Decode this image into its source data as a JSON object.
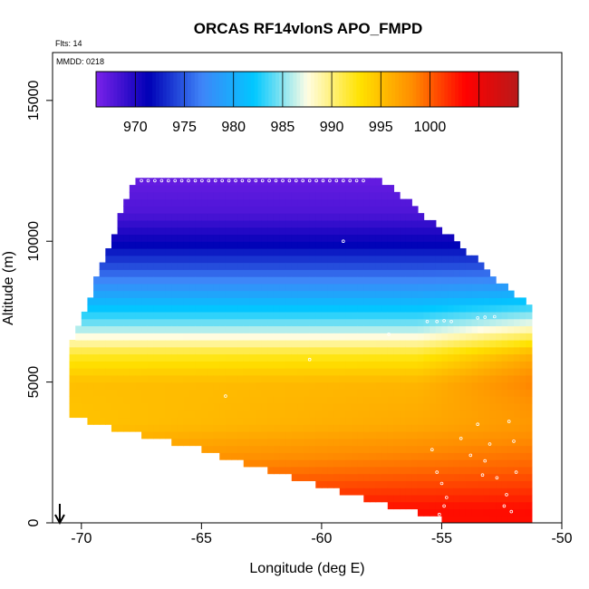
{
  "chart_data": {
    "type": "heatmap",
    "title": "ORCAS RF14vlonS APO_FMPD",
    "annotations": {
      "flights": "Flts: 14",
      "date": "MMDD: 0218"
    },
    "xlabel": "Longitude (deg E)",
    "ylabel": "Altitude (m)",
    "xlim": [
      -71.2,
      -50
    ],
    "ylim": [
      0,
      16700
    ],
    "xticks": [
      -70,
      -65,
      -60,
      -55,
      -50
    ],
    "yticks": [
      0,
      5000,
      10000,
      15000
    ],
    "colorbar": {
      "min": 966,
      "max": 1009,
      "ticks": [
        970,
        975,
        980,
        985,
        990,
        995,
        1000
      ],
      "lines": [
        970,
        975,
        980,
        985,
        990,
        995,
        1000,
        1005
      ],
      "colors": [
        "#7b22ea",
        "#0000b6",
        "#3f84f8",
        "#00c8ff",
        "#fffde4",
        "#ffe200",
        "#ff8c00",
        "#ff0000",
        "#b81a1a"
      ]
    },
    "field_description": {
      "altitude_profile": [
        [
          500,
          1003
        ],
        [
          2000,
          999
        ],
        [
          3500,
          996
        ],
        [
          5000,
          995.5
        ],
        [
          6000,
          992
        ],
        [
          7000,
          985
        ],
        [
          8000,
          980
        ],
        [
          9000,
          975
        ],
        [
          10000,
          971
        ],
        [
          11000,
          968
        ],
        [
          12200,
          967
        ]
      ],
      "domain_top": [
        [
          -70.6,
          6000
        ],
        [
          -69.7,
          7800
        ],
        [
          -68.7,
          10000
        ],
        [
          -68,
          11800
        ],
        [
          -67.7,
          12200
        ],
        [
          -57.8,
          12200
        ],
        [
          -54.5,
          10000
        ],
        [
          -52,
          8000
        ],
        [
          -51.2,
          7600
        ]
      ],
      "domain_bottom": [
        [
          -70.7,
          3800
        ],
        [
          -65,
          2600
        ],
        [
          -60,
          1300
        ],
        [
          -56.2,
          400
        ],
        [
          -55,
          100
        ],
        [
          -53.8,
          0
        ]
      ]
    },
    "marker": {
      "type": "arrow",
      "longitude": -70.9,
      "label": ""
    }
  }
}
